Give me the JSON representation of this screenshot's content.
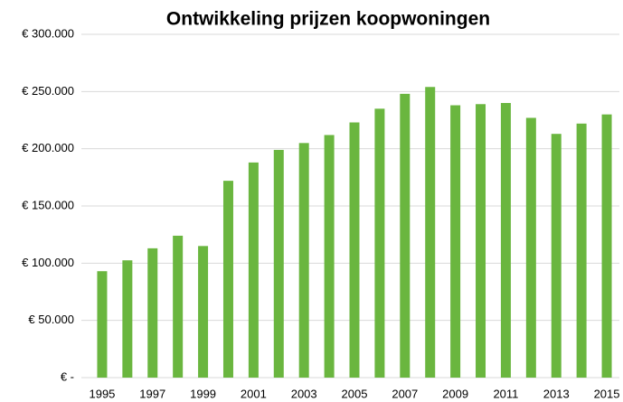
{
  "chart_data": {
    "type": "bar",
    "title": "Ontwikkeling prijzen koopwoningen",
    "categories": [
      "1995",
      null,
      "1997",
      null,
      "1999",
      null,
      "2001",
      null,
      "2003",
      null,
      "2005",
      null,
      "2007",
      null,
      "2009",
      null,
      "2011",
      null,
      "2013",
      null,
      "2015"
    ],
    "values": [
      93000,
      102500,
      113000,
      124000,
      115000,
      172000,
      188000,
      199000,
      205000,
      212000,
      223000,
      235000,
      248000,
      254000,
      238000,
      239000,
      240000,
      227000,
      213000,
      222000,
      230000
    ],
    "color": "#6ab63f",
    "ylim": [
      0,
      300000
    ],
    "yticks": [
      {
        "value": 0,
        "label": "€ -"
      },
      {
        "value": 50000,
        "label": "€ 50.000"
      },
      {
        "value": 100000,
        "label": "€ 100.000"
      },
      {
        "value": 150000,
        "label": "€ 150.000"
      },
      {
        "value": 200000,
        "label": "€ 200.000"
      },
      {
        "value": 250000,
        "label": "€ 250.000"
      },
      {
        "value": 300000,
        "label": "€ 300.000"
      }
    ],
    "grid": true
  }
}
